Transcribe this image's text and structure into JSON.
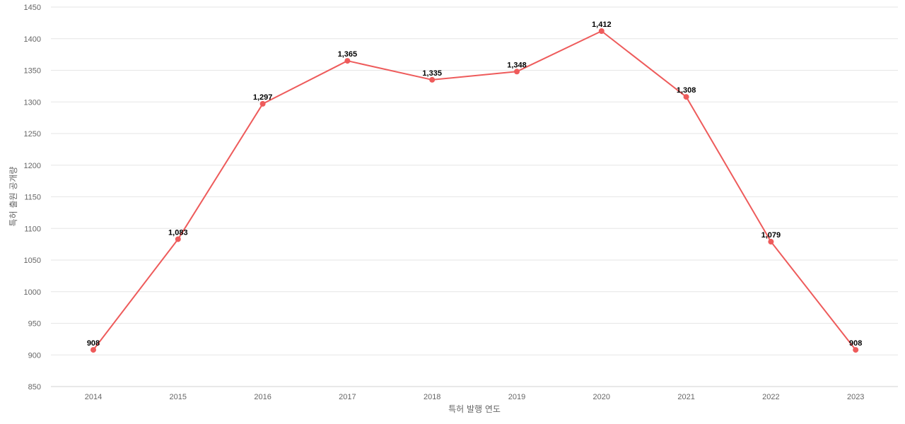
{
  "chart_data": {
    "type": "line",
    "title": "",
    "xlabel": "특허 발행 연도",
    "ylabel": "특허 출원 공개량",
    "categories": [
      "2014",
      "2015",
      "2016",
      "2017",
      "2018",
      "2019",
      "2020",
      "2021",
      "2022",
      "2023"
    ],
    "series": [
      {
        "values": [
          908,
          1083,
          1297,
          1365,
          1335,
          1348,
          1412,
          1308,
          1079,
          908
        ],
        "labels": [
          "908",
          "1,083",
          "1,297",
          "1,365",
          "1,335",
          "1,348",
          "1,412",
          "1,308",
          "1,079",
          "908"
        ],
        "color": "#ee5b5b"
      }
    ],
    "ylim": [
      850,
      1450
    ],
    "yticks": [
      "850",
      "900",
      "950",
      "1000",
      "1050",
      "1100",
      "1150",
      "1200",
      "1250",
      "1300",
      "1350",
      "1400",
      "1450"
    ],
    "grid": true,
    "legend": "none"
  }
}
